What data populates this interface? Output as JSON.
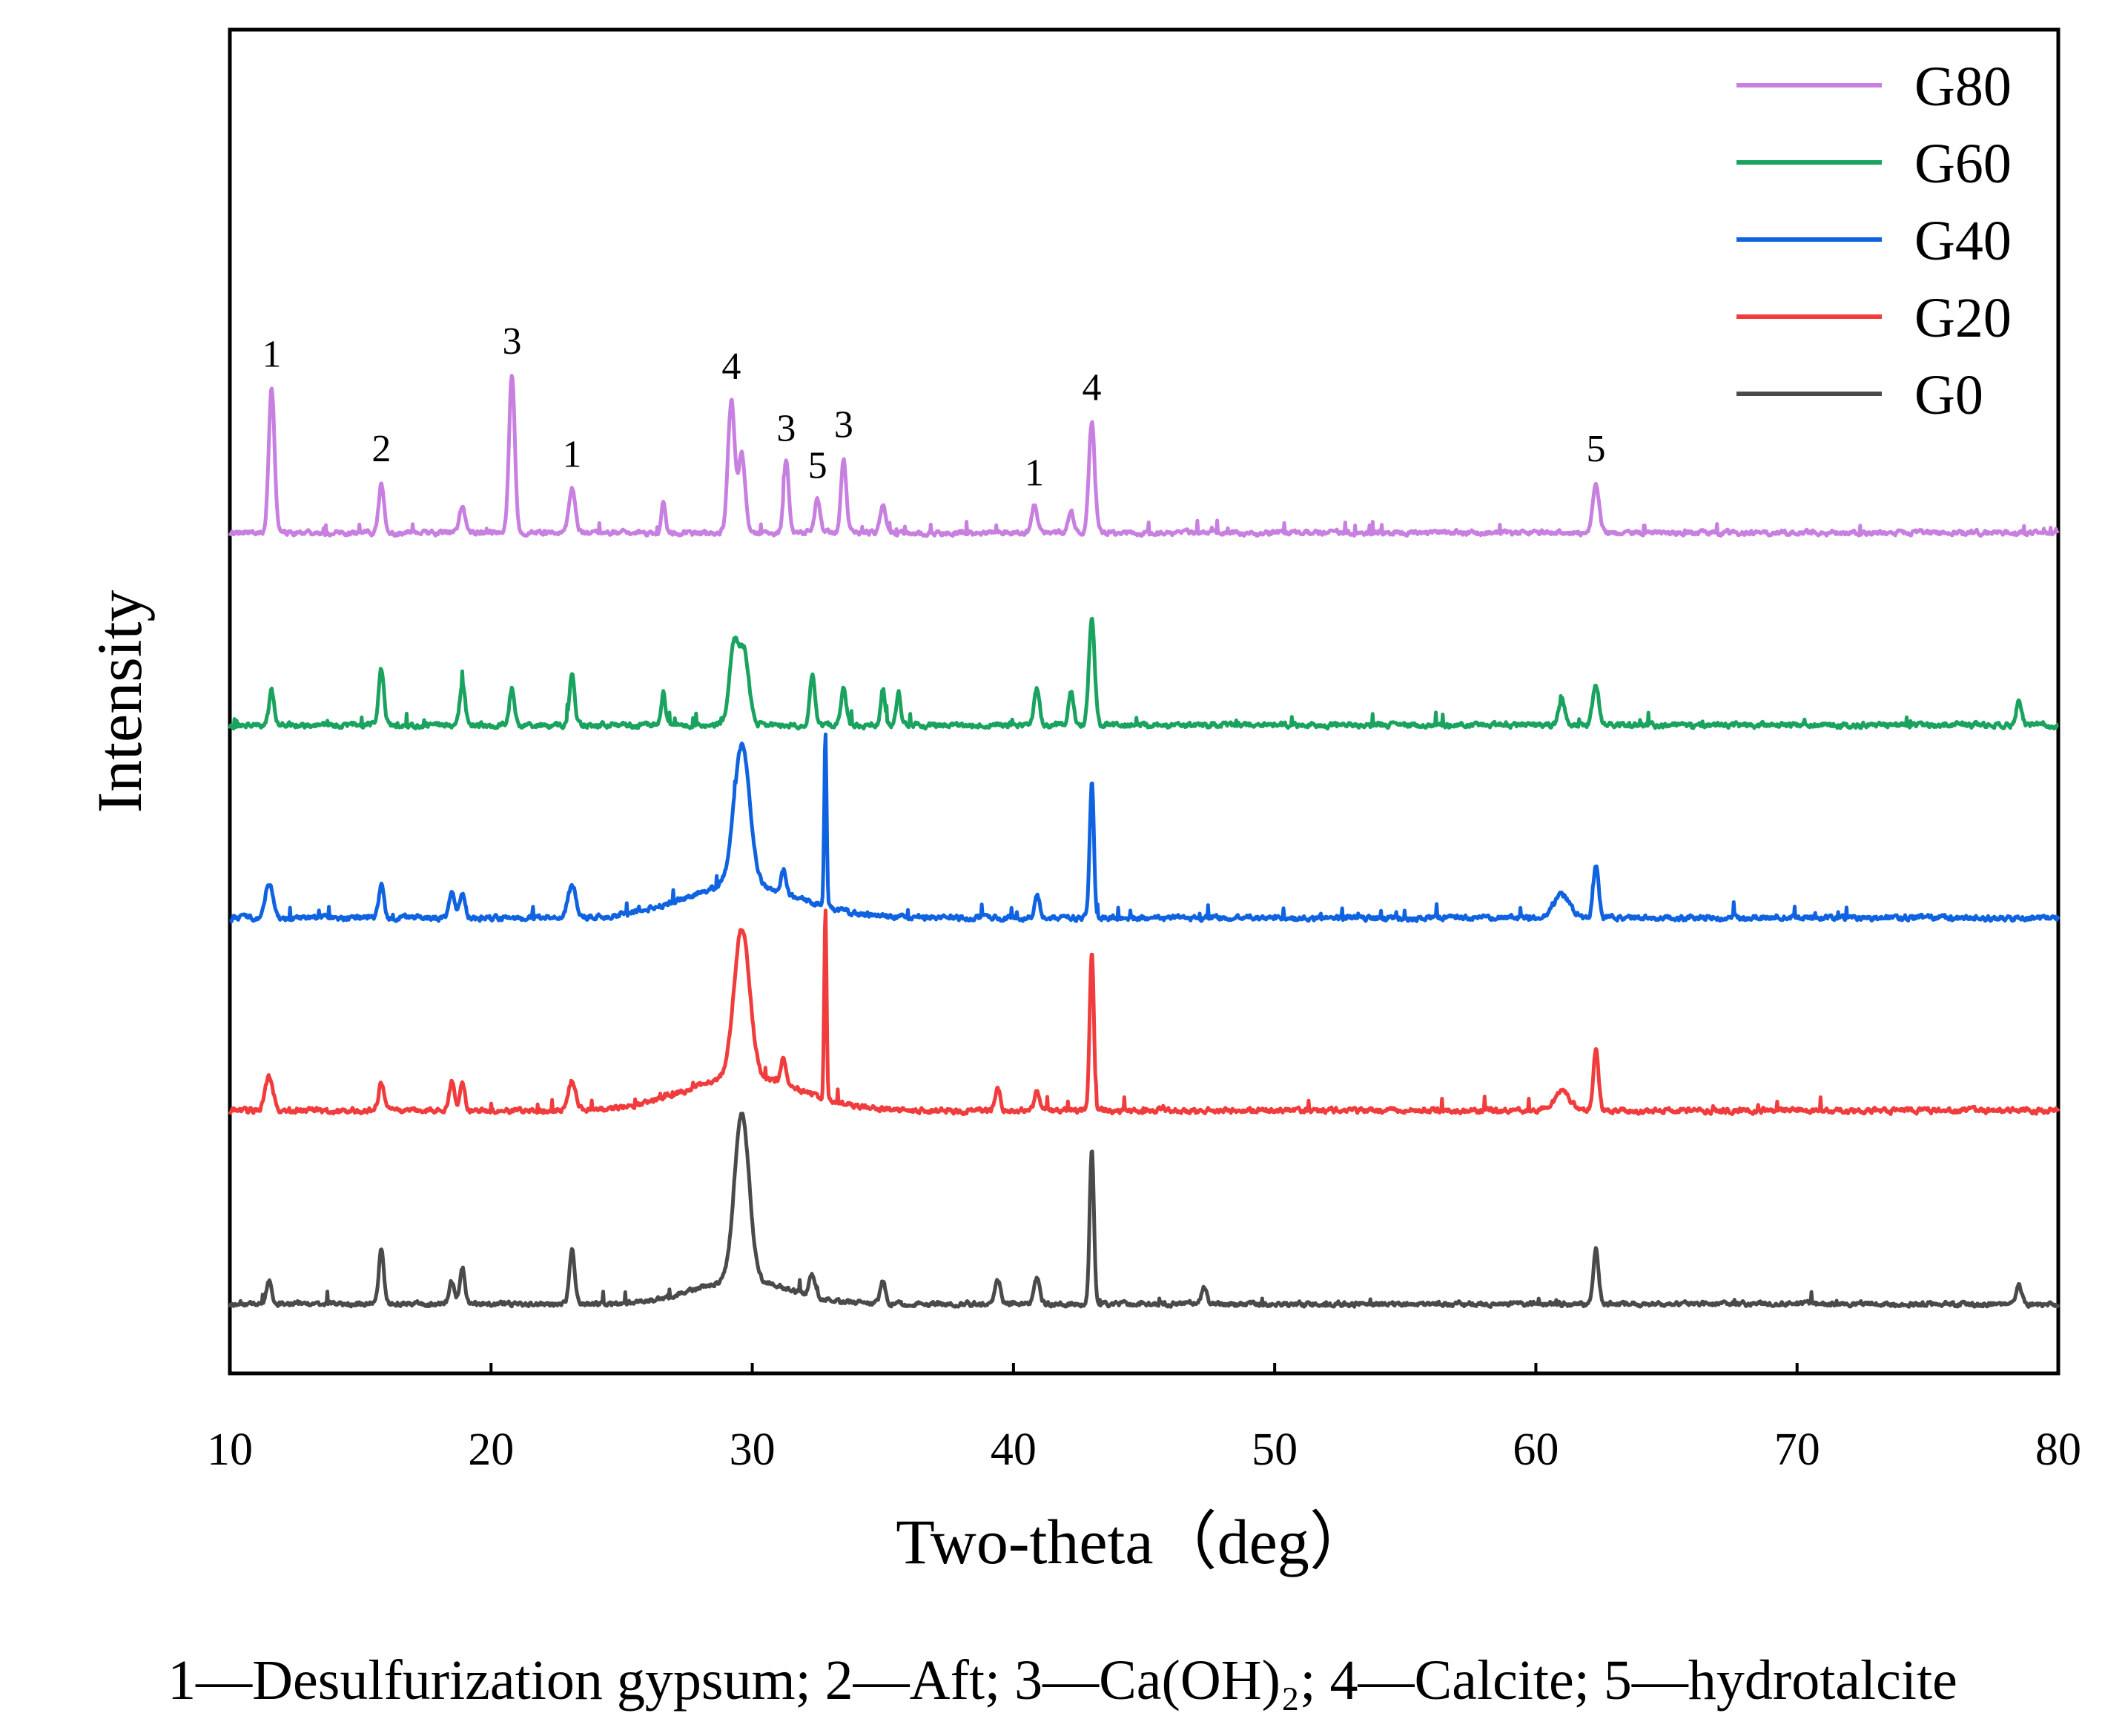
{
  "chart_data": {
    "type": "line",
    "xlabel": "Two-theta（deg）",
    "ylabel": "Intensity",
    "xlim": [
      10,
      80
    ],
    "xticks": [
      10,
      20,
      30,
      40,
      50,
      60,
      70,
      80
    ],
    "xtick_labels": [
      "10",
      "20",
      "30",
      "40",
      "50",
      "60",
      "70",
      "80"
    ],
    "yticks": "none",
    "grid": false,
    "legend_position": "top-right",
    "caption": "1—Desulfurization gypsum; 2—Aft; 3—Ca(OH)₂; 4—Calcite; 5—hydrotalcite",
    "series": [
      {
        "name": "G80",
        "color": "#c77fe0",
        "offset": 4,
        "noise": 0.045,
        "seed": 80,
        "peaks": [
          [
            11.6,
            0.78,
            0.11
          ],
          [
            15.8,
            0.27,
            0.1
          ],
          [
            18.9,
            0.15,
            0.1
          ],
          [
            20.8,
            0.85,
            0.11
          ],
          [
            23.1,
            0.24,
            0.12
          ],
          [
            26.6,
            0.16,
            0.08
          ],
          [
            29.2,
            0.71,
            0.13
          ],
          [
            29.6,
            0.42,
            0.13
          ],
          [
            31.3,
            0.38,
            0.1
          ],
          [
            32.5,
            0.18,
            0.1
          ],
          [
            33.5,
            0.4,
            0.1
          ],
          [
            35.0,
            0.15,
            0.1
          ],
          [
            40.8,
            0.14,
            0.1
          ],
          [
            42.2,
            0.12,
            0.1
          ],
          [
            43.0,
            0.6,
            0.11
          ],
          [
            62.3,
            0.27,
            0.12
          ]
        ]
      },
      {
        "name": "G60",
        "color": "#1aa35e",
        "offset": 3,
        "noise": 0.05,
        "seed": 60,
        "peaks": [
          [
            11.6,
            0.18,
            0.1
          ],
          [
            15.8,
            0.3,
            0.1
          ],
          [
            18.9,
            0.22,
            0.1
          ],
          [
            20.8,
            0.2,
            0.1
          ],
          [
            23.1,
            0.27,
            0.1
          ],
          [
            26.6,
            0.17,
            0.08
          ],
          [
            29.3,
            0.42,
            0.18
          ],
          [
            29.7,
            0.38,
            0.18
          ],
          [
            32.3,
            0.27,
            0.1
          ],
          [
            33.5,
            0.2,
            0.1
          ],
          [
            35.0,
            0.2,
            0.08
          ],
          [
            35.6,
            0.18,
            0.08
          ],
          [
            40.9,
            0.2,
            0.1
          ],
          [
            42.2,
            0.18,
            0.1
          ],
          [
            43.0,
            0.58,
            0.11
          ],
          [
            61.0,
            0.14,
            0.12
          ],
          [
            62.3,
            0.21,
            0.12
          ],
          [
            78.5,
            0.14,
            0.1
          ]
        ]
      },
      {
        "name": "G40",
        "color": "#1063e0",
        "offset": 2,
        "noise": 0.05,
        "seed": 40,
        "peaks": [
          [
            11.5,
            0.18,
            0.15
          ],
          [
            15.8,
            0.17,
            0.1
          ],
          [
            18.5,
            0.14,
            0.1
          ],
          [
            18.9,
            0.14,
            0.1
          ],
          [
            23.1,
            0.17,
            0.15
          ],
          [
            29.6,
            0.75,
            0.3
          ],
          [
            31.2,
            0.12,
            0.1
          ],
          [
            32.8,
            0.93,
            0.045
          ],
          [
            40.9,
            0.12,
            0.1
          ],
          [
            43.0,
            0.73,
            0.08
          ],
          [
            61.0,
            0.12,
            0.3
          ],
          [
            62.3,
            0.28,
            0.1
          ]
        ],
        "humps": [
          [
            29.6,
            0.18,
            2.2
          ]
        ]
      },
      {
        "name": "G20",
        "color": "#f03c3c",
        "offset": 1,
        "noise": 0.05,
        "seed": 20,
        "peaks": [
          [
            11.5,
            0.18,
            0.15
          ],
          [
            15.8,
            0.15,
            0.1
          ],
          [
            18.5,
            0.15,
            0.1
          ],
          [
            18.9,
            0.15,
            0.1
          ],
          [
            23.1,
            0.16,
            0.15
          ],
          [
            29.6,
            0.8,
            0.3
          ],
          [
            31.2,
            0.15,
            0.1
          ],
          [
            32.8,
            1.03,
            0.045
          ],
          [
            39.4,
            0.12,
            0.1
          ],
          [
            40.9,
            0.1,
            0.1
          ],
          [
            43.0,
            0.85,
            0.08
          ],
          [
            61.0,
            0.1,
            0.3
          ],
          [
            62.3,
            0.33,
            0.1
          ]
        ],
        "humps": [
          [
            29.6,
            0.18,
            2.2
          ]
        ]
      },
      {
        "name": "G0",
        "color": "#4a4a4a",
        "offset": 0,
        "noise": 0.045,
        "seed": 3,
        "peaks": [
          [
            11.5,
            0.12,
            0.1
          ],
          [
            15.8,
            0.29,
            0.1
          ],
          [
            18.5,
            0.12,
            0.1
          ],
          [
            18.9,
            0.2,
            0.1
          ],
          [
            23.1,
            0.3,
            0.1
          ],
          [
            29.6,
            0.9,
            0.28
          ],
          [
            32.3,
            0.12,
            0.12
          ],
          [
            35.0,
            0.12,
            0.1
          ],
          [
            39.4,
            0.13,
            0.1
          ],
          [
            40.9,
            0.14,
            0.1
          ],
          [
            43.0,
            0.84,
            0.08
          ],
          [
            47.3,
            0.1,
            0.1
          ],
          [
            62.3,
            0.3,
            0.1
          ],
          [
            78.5,
            0.1,
            0.1
          ]
        ],
        "humps": [
          [
            29.6,
            0.13,
            1.8
          ]
        ]
      }
    ],
    "annotations": [
      {
        "x": 11.6,
        "series": "G80",
        "label": "1"
      },
      {
        "x": 15.8,
        "series": "G80",
        "label": "2"
      },
      {
        "x": 20.8,
        "series": "G80",
        "label": "3"
      },
      {
        "x": 23.1,
        "series": "G80",
        "label": "1"
      },
      {
        "x": 29.2,
        "series": "G80",
        "label": "4"
      },
      {
        "x": 31.3,
        "series": "G80",
        "label": "3"
      },
      {
        "x": 32.5,
        "series": "G80",
        "label": "5"
      },
      {
        "x": 33.5,
        "series": "G80",
        "label": "3"
      },
      {
        "x": 40.8,
        "series": "G80",
        "label": "1"
      },
      {
        "x": 43.0,
        "series": "G80",
        "label": "4"
      },
      {
        "x": 62.3,
        "series": "G80",
        "label": "5"
      }
    ]
  }
}
